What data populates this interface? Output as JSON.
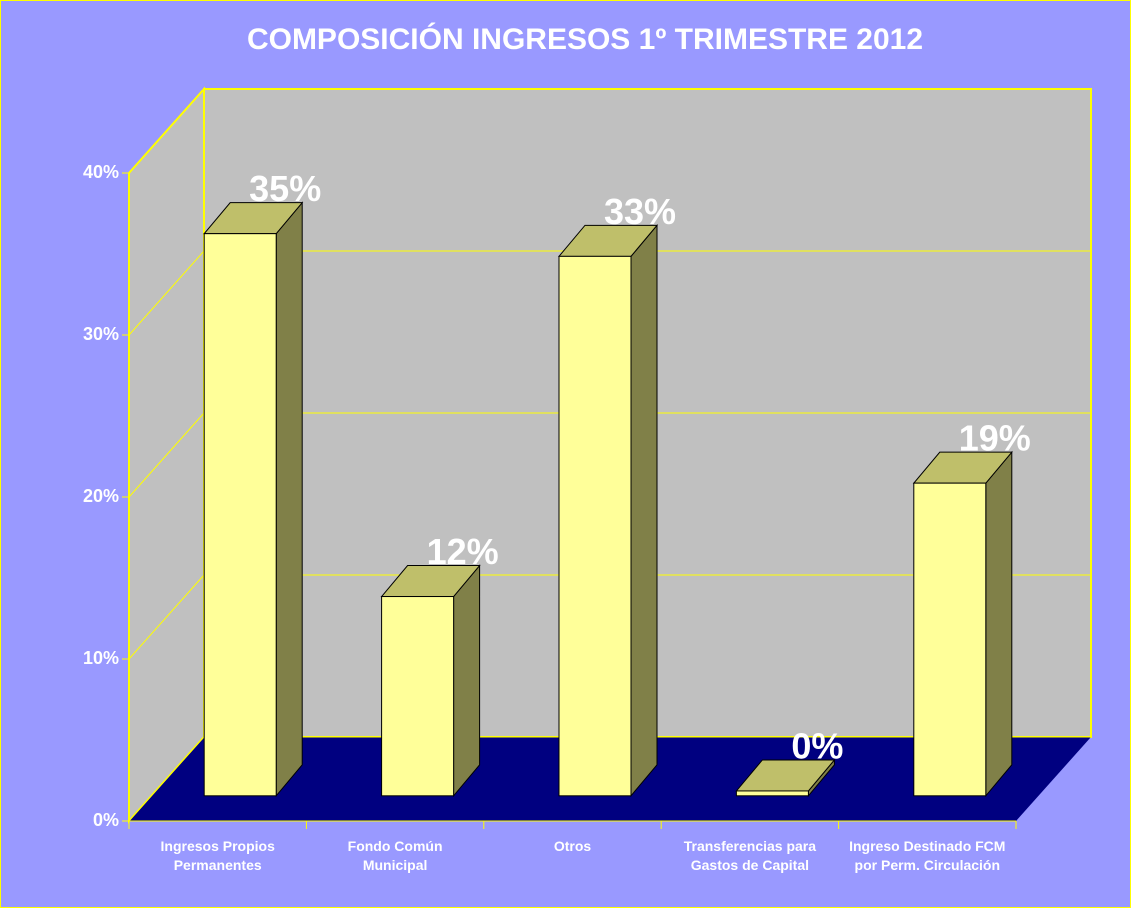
{
  "chart_data": {
    "type": "bar3d",
    "title": "COMPOSICIÓN INGRESOS 1º TRIMESTRE 2012",
    "categories": [
      "Ingresos Propios Permanentes",
      "Fondo Común Municipal",
      "Otros",
      "Transferencias para Gastos de Capital",
      "Ingreso Destinado FCM por Perm. Circulación"
    ],
    "values": [
      34.7,
      12.3,
      33.3,
      0.3,
      19.3
    ],
    "value_labels": [
      "35%",
      "12%",
      "33%",
      "0%",
      "19%"
    ],
    "colors": {
      "front": "#ffff99",
      "top": "#bfbf6a",
      "side": "#808048"
    },
    "ylim": [
      0,
      40
    ],
    "yticks": [
      {
        "value": 0,
        "label": "0%"
      },
      {
        "value": 10,
        "label": "10%"
      },
      {
        "value": 20,
        "label": "20%"
      },
      {
        "value": 30,
        "label": "30%"
      },
      {
        "value": 40,
        "label": "40%"
      }
    ],
    "grid": true
  }
}
